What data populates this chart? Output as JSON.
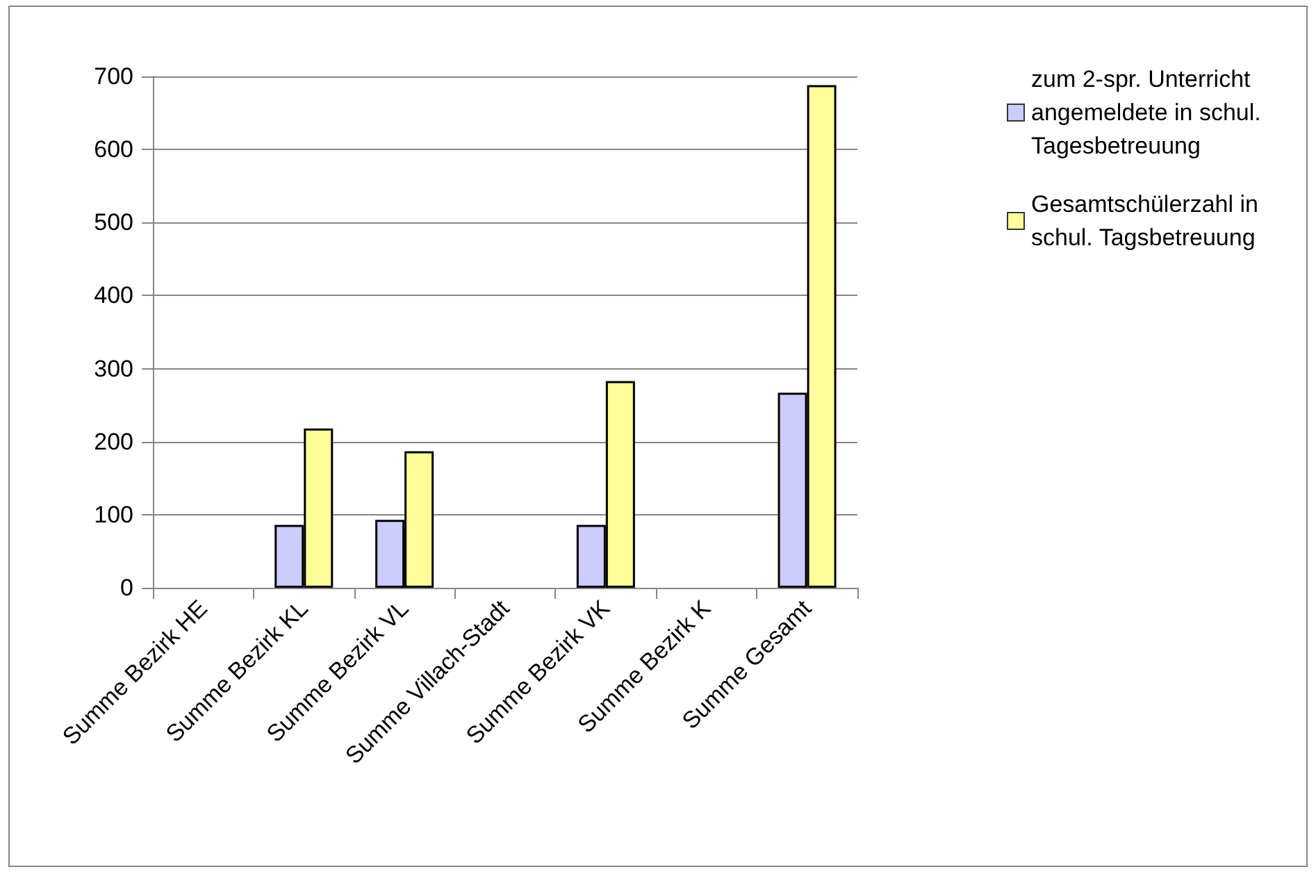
{
  "chart_data": {
    "type": "bar",
    "categories": [
      "Summe Bezirk HE",
      "Summe Bezirk KL",
      "Summe Bezirk VL",
      "Summe Villach-Stadt",
      "Summe Bezirk VK",
      "Summe Bezirk K",
      "Summe Gesamt"
    ],
    "series": [
      {
        "name": "zum 2-spr. Unterricht angemeldete in schul. Tagesbetreuung",
        "color": "#ccccff",
        "values": [
          null,
          86,
          93,
          null,
          86,
          null,
          267
        ]
      },
      {
        "name": "Gesamtschülerzahl in schul. Tagsbetreuung",
        "color": "#ffff99",
        "values": [
          null,
          218,
          187,
          null,
          283,
          null,
          688
        ]
      }
    ],
    "ylim": [
      0,
      700
    ],
    "yticks": [
      0,
      100,
      200,
      300,
      400,
      500,
      600,
      700
    ],
    "grid": "y",
    "legend": "right"
  }
}
